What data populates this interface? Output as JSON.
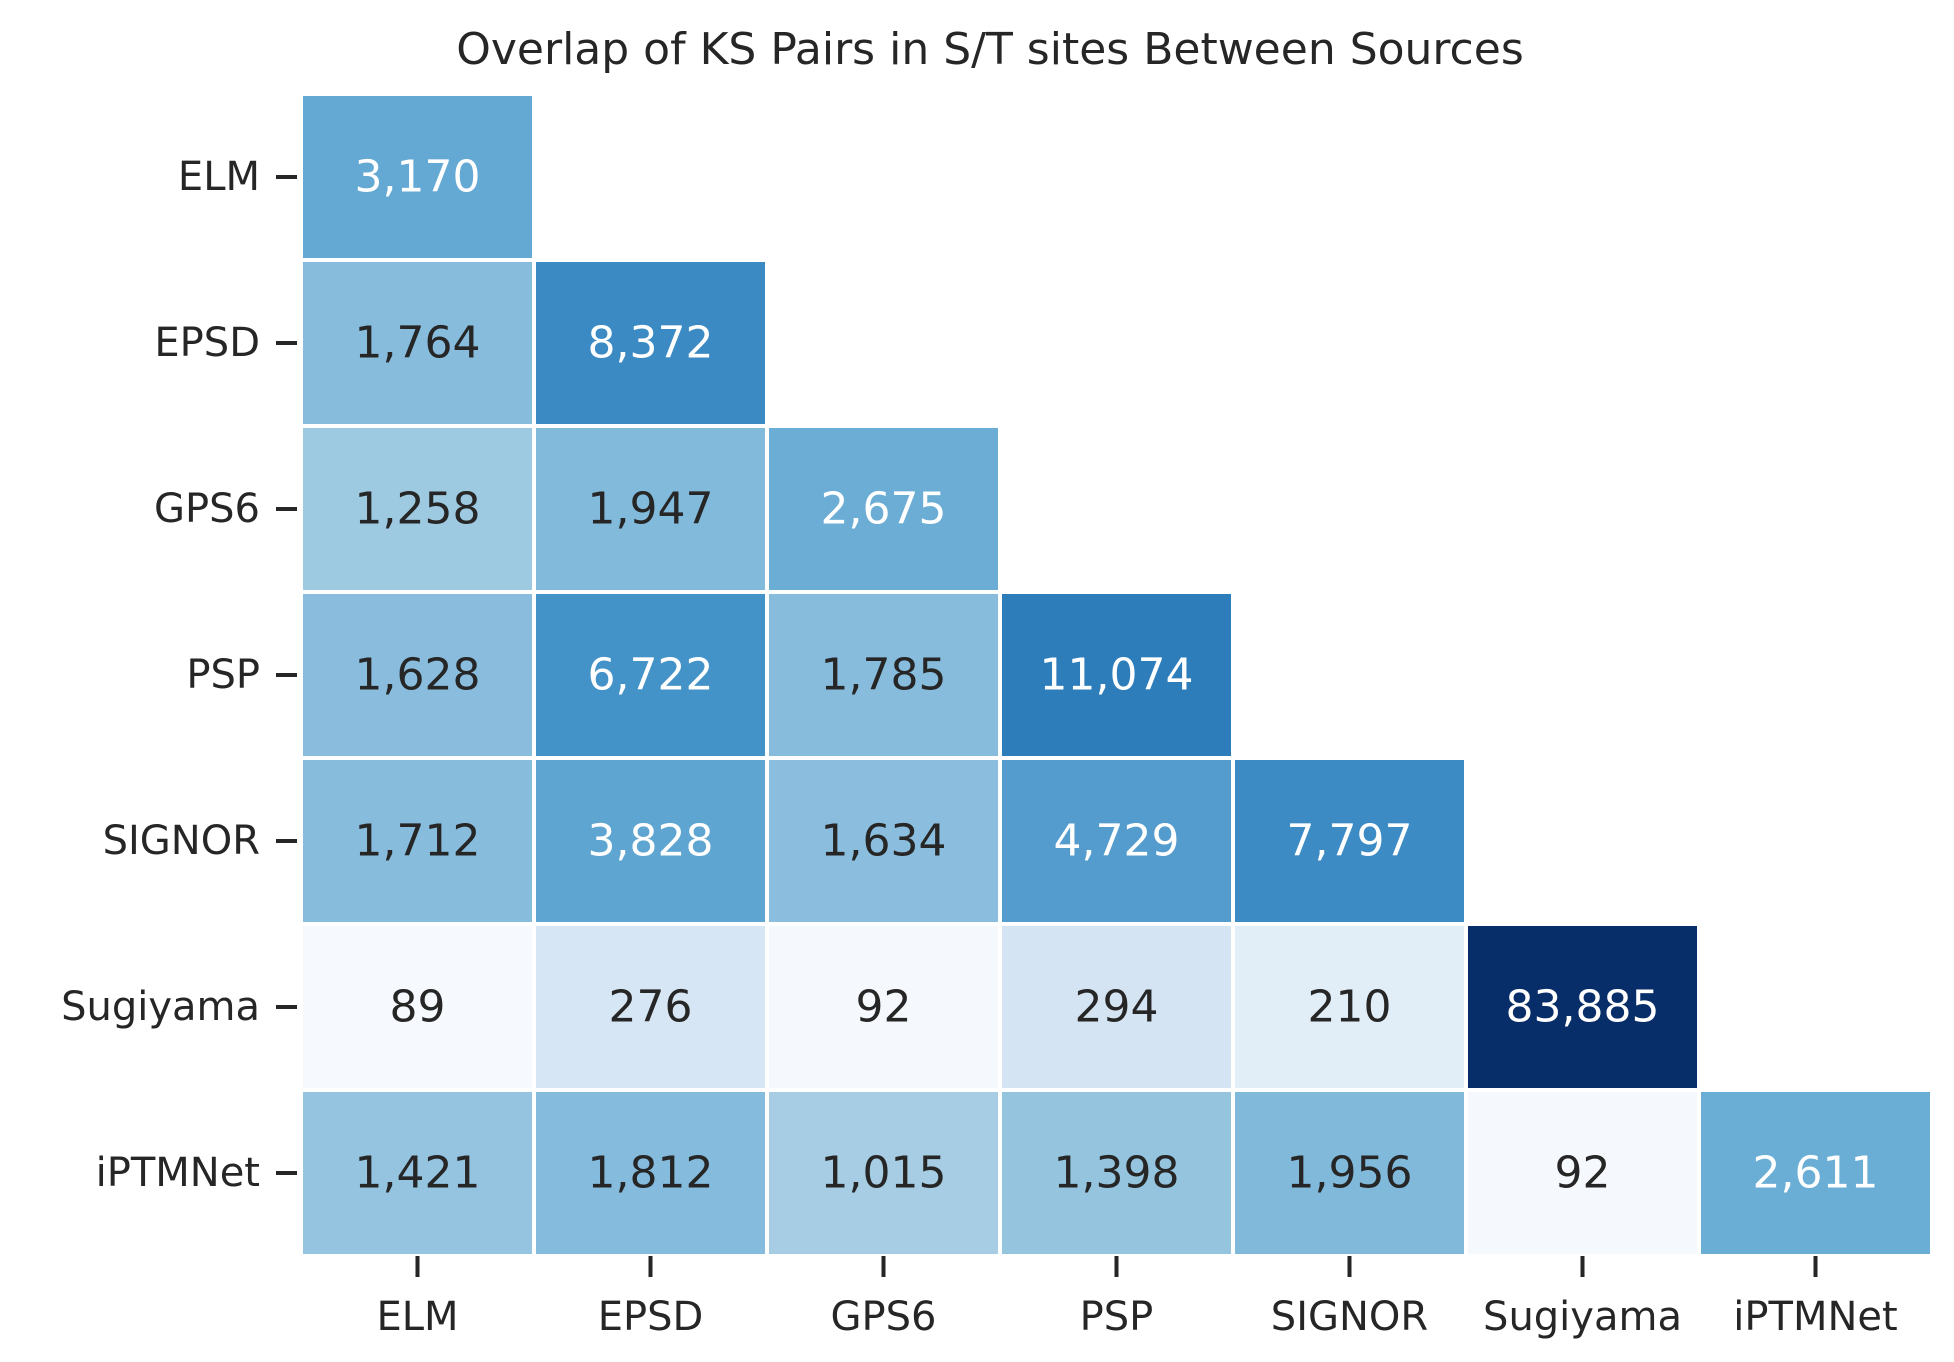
{
  "chart_data": {
    "type": "heatmap",
    "title": "Overlap of KS Pairs in S/T sites Between Sources",
    "xlabel": "",
    "ylabel": "",
    "rows": [
      "ELM",
      "EPSD",
      "GPS6",
      "PSP",
      "SIGNOR",
      "Sugiyama",
      "iPTMNet"
    ],
    "cols": [
      "ELM",
      "EPSD",
      "GPS6",
      "PSP",
      "SIGNOR",
      "Sugiyama",
      "iPTMNet"
    ],
    "values": [
      [
        3170,
        null,
        null,
        null,
        null,
        null,
        null
      ],
      [
        1764,
        8372,
        null,
        null,
        null,
        null,
        null
      ],
      [
        1258,
        1947,
        2675,
        null,
        null,
        null,
        null
      ],
      [
        1628,
        6722,
        1785,
        11074,
        null,
        null,
        null
      ],
      [
        1712,
        3828,
        1634,
        4729,
        7797,
        null,
        null
      ],
      [
        89,
        276,
        92,
        294,
        210,
        83885,
        null
      ],
      [
        1421,
        1812,
        1015,
        1398,
        1956,
        92,
        2611
      ]
    ],
    "labels": [
      [
        "3,170",
        "",
        "",
        "",
        "",
        "",
        ""
      ],
      [
        "1,764",
        "8,372",
        "",
        "",
        "",
        "",
        ""
      ],
      [
        "1,258",
        "1,947",
        "2,675",
        "",
        "",
        "",
        ""
      ],
      [
        "1,628",
        "6,722",
        "1,785",
        "11,074",
        "",
        "",
        ""
      ],
      [
        "1,712",
        "3,828",
        "1,634",
        "4,729",
        "7,797",
        "",
        ""
      ],
      [
        "89",
        "276",
        "92",
        "294",
        "210",
        "83,885",
        ""
      ],
      [
        "1,421",
        "1,812",
        "1,015",
        "1,398",
        "1,956",
        "92",
        "2,611"
      ]
    ],
    "mask": "upper triangle",
    "colormap": "Blues",
    "colorbar": false,
    "grid": false,
    "colors": {
      "cells": [
        [
          "#64a9d3",
          null,
          null,
          null,
          null,
          null,
          null
        ],
        [
          "#88bcdd",
          "#3b8ac4",
          null,
          null,
          null,
          null,
          null
        ],
        [
          "#9dc9e1",
          "#82badb",
          "#6cadd5",
          null,
          null,
          null,
          null
        ],
        [
          "#8abddd",
          "#4493c8",
          "#87bcdd",
          "#2d7dbb",
          null,
          null,
          null
        ],
        [
          "#87bcdd",
          "#5ea5d1",
          "#8bbede",
          "#539ccd",
          "#3d8bc4",
          null,
          null
        ],
        [
          "#f6fafe",
          "#d7e6f4",
          "#f5f9fd",
          "#d5e4f3",
          "#e1edf7",
          "#082e69",
          null
        ],
        [
          "#94c4df",
          "#85bbdc",
          "#a6cde3",
          "#95c4df",
          "#81b9db",
          "#f5f9fd",
          "#6aaed6"
        ]
      ],
      "text_dark": "#262626",
      "text_light": "#ffffff",
      "cell_border": "#ffffff"
    }
  }
}
